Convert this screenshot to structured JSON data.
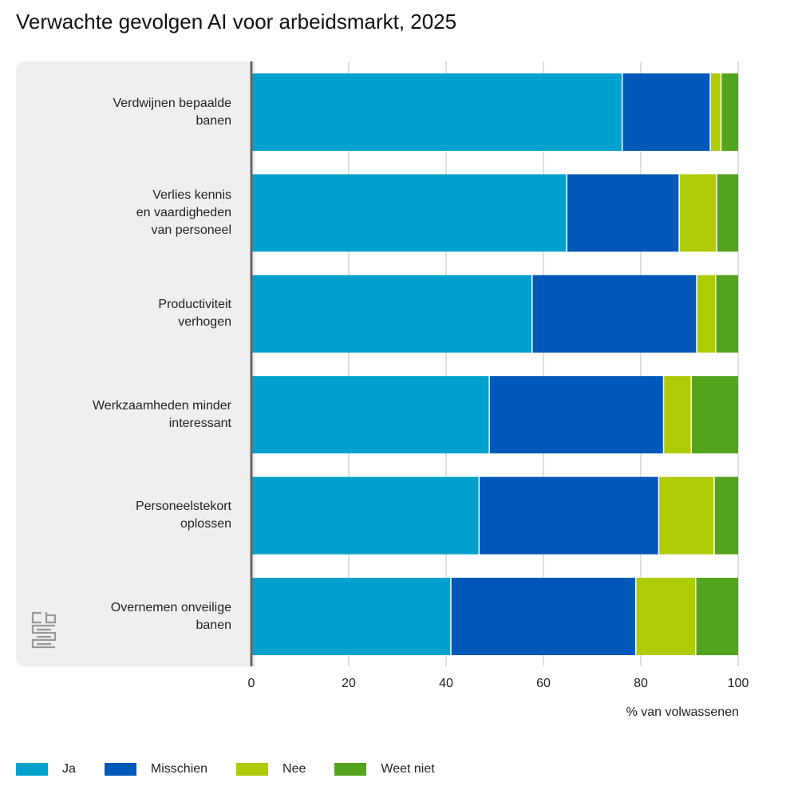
{
  "chart_data": {
    "type": "bar",
    "orientation": "horizontal",
    "stacked": true,
    "title": "Verwachte gevolgen AI voor arbeidsmarkt, 2025",
    "xlabel": "% van volwassenen",
    "ylabel": "",
    "xlim": [
      0,
      100
    ],
    "xticks": [
      "0",
      "20",
      "40",
      "60",
      "80",
      "100"
    ],
    "grid": true,
    "legend_position": "bottom",
    "categories": [
      "Verdwijnen bepaalde\nbanen",
      "Verlies kennis\nen vaardigheden\nvan personeel",
      "Productiviteit\nverhogen",
      "Werkzaamheden minder\ninteressant",
      "Personeelstekort\noplossen",
      "Overnemen onveilige\nbanen"
    ],
    "series": [
      {
        "name": "Ja",
        "color": "#00a1cd",
        "values": [
          76.3,
          64.9,
          57.8,
          49.0,
          46.9,
          41.1
        ]
      },
      {
        "name": "Misschien",
        "color": "#0058b8",
        "values": [
          18.1,
          23.1,
          33.8,
          35.8,
          36.9,
          38.0
        ]
      },
      {
        "name": "Nee",
        "color": "#afcb05",
        "values": [
          2.2,
          7.7,
          3.9,
          5.7,
          11.4,
          12.3
        ]
      },
      {
        "name": "Weet niet",
        "color": "#53a31d",
        "values": [
          3.4,
          4.3,
          4.5,
          9.5,
          4.8,
          8.6
        ]
      }
    ]
  },
  "logo": "cbs"
}
